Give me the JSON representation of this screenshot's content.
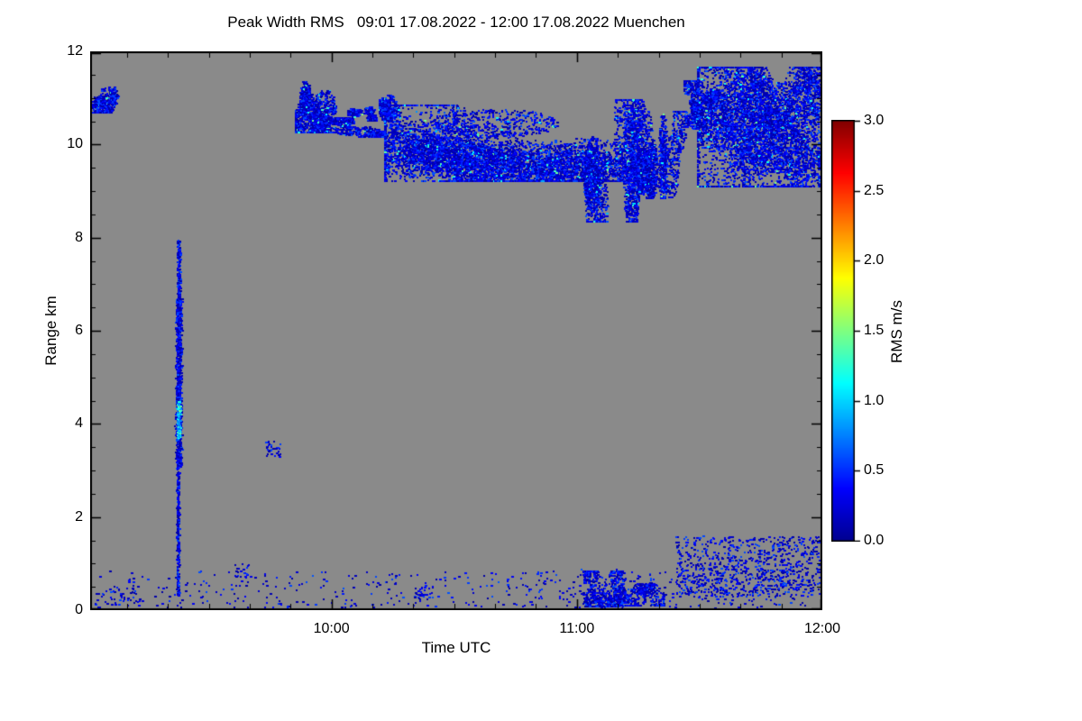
{
  "chart_data": {
    "type": "heatmap",
    "title": "Peak Width RMS   09:01 17.08.2022 - 12:00 17.08.2022 Muenchen",
    "xlabel": "Time UTC",
    "ylabel": "Range km",
    "x_range": {
      "start_hour": 9.0167,
      "end_hour": 12.0,
      "start_label": "09:01",
      "end_label": "12:00"
    },
    "y_range": [
      0,
      12
    ],
    "x_minor_step_hours": 0.1666667,
    "y_minor_step": 0.5,
    "xticks": [
      {
        "hour": 10,
        "label": "10:00"
      },
      {
        "hour": 11,
        "label": "11:00"
      },
      {
        "hour": 12,
        "label": "12:00"
      }
    ],
    "yticks": [
      {
        "v": 0,
        "label": "0"
      },
      {
        "v": 2,
        "label": "2"
      },
      {
        "v": 4,
        "label": "4"
      },
      {
        "v": 6,
        "label": "6"
      },
      {
        "v": 8,
        "label": "8"
      },
      {
        "v": 10,
        "label": "10"
      },
      {
        "v": 12,
        "label": "12"
      }
    ],
    "plot_background": "#8a8a8a",
    "frame_color": "#000000",
    "text_color": "#000000",
    "colorbar": {
      "label": "RMS m/s",
      "min": 0,
      "max": 3,
      "ticks": [
        {
          "v": 0.0,
          "label": "0.0"
        },
        {
          "v": 0.5,
          "label": "0.5"
        },
        {
          "v": 1.0,
          "label": "1.0"
        },
        {
          "v": 1.5,
          "label": "1.5"
        },
        {
          "v": 2.0,
          "label": "2.0"
        },
        {
          "v": 2.5,
          "label": "2.5"
        },
        {
          "v": 3.0,
          "label": "3.0"
        }
      ],
      "stops": [
        [
          0.0,
          "#00008f"
        ],
        [
          0.125,
          "#0000ff"
        ],
        [
          0.375,
          "#00ffff"
        ],
        [
          0.625,
          "#ffff00"
        ],
        [
          0.875,
          "#ff0000"
        ],
        [
          1.0,
          "#800000"
        ]
      ]
    },
    "features": [
      {
        "name": "left-edge-cloud-patch",
        "kind": "blob",
        "t": [
          9.025,
          9.12
        ],
        "z": [
          10.75,
          11.35
        ],
        "n": 480,
        "c": 5,
        "hot": true
      },
      {
        "name": "hook-cloud-main",
        "kind": "blob",
        "t": [
          9.86,
          10.01
        ],
        "z": [
          10.35,
          11.3
        ],
        "n": 1500,
        "c": 7,
        "hot": true
      },
      {
        "name": "hook-cloud-tail",
        "kind": "blob",
        "t": [
          9.97,
          10.19
        ],
        "z": [
          10.2,
          10.55
        ],
        "n": 600,
        "c": 6,
        "hot": true
      },
      {
        "name": "hook-cloud-chunk",
        "kind": "blob",
        "t": [
          10.07,
          10.17
        ],
        "z": [
          10.55,
          10.92
        ],
        "n": 280,
        "c": 3,
        "hot": true
      },
      {
        "name": "cloud-patch-1015",
        "kind": "blob",
        "t": [
          10.2,
          10.3
        ],
        "z": [
          10.55,
          11.15
        ],
        "n": 430,
        "c": 4,
        "hot": true
      },
      {
        "name": "main-cloud-band",
        "kind": "blob",
        "t": [
          10.27,
          11.2
        ],
        "z": [
          9.35,
          10.75
        ],
        "n": 7000,
        "c": 16,
        "hot": true
      },
      {
        "name": "virga-streaks-1",
        "kind": "blob",
        "t": [
          11.02,
          11.26
        ],
        "z": [
          8.55,
          10.8
        ],
        "n": 2700,
        "c": 10,
        "elong": "z",
        "hot": true
      },
      {
        "name": "virga-streaks-2",
        "kind": "blob",
        "t": [
          11.26,
          11.46
        ],
        "z": [
          9.0,
          10.6
        ],
        "n": 1500,
        "c": 8,
        "elong": "z",
        "hot": true
      },
      {
        "name": "pre-right-cloud-patch",
        "kind": "blob",
        "t": [
          11.44,
          11.56
        ],
        "z": [
          10.4,
          11.3
        ],
        "n": 750,
        "c": 5,
        "hot": true
      },
      {
        "name": "right-cloud-cluster",
        "kind": "blob",
        "t": [
          11.52,
          12.01
        ],
        "z": [
          9.3,
          11.5
        ],
        "n": 6500,
        "c": 14,
        "hot": true
      },
      {
        "name": "right-top-specks",
        "kind": "speckle",
        "t": [
          11.88,
          12.0
        ],
        "z": [
          11.15,
          11.55
        ],
        "n": 160
      },
      {
        "name": "plume-top",
        "kind": "vstreak",
        "tc": 9.375,
        "tw": 0.006,
        "z": [
          6.7,
          7.95
        ],
        "n": 170
      },
      {
        "name": "plume-core",
        "kind": "vstreak",
        "tc": 9.375,
        "tw": 0.011,
        "z": [
          3.1,
          6.7
        ],
        "n": 950
      },
      {
        "name": "plume-bright-core",
        "kind": "vstreak",
        "tc": 9.375,
        "tw": 0.007,
        "z": [
          3.7,
          4.5
        ],
        "n": 150,
        "v": [
          0.7,
          1.5
        ]
      },
      {
        "name": "plume-low",
        "kind": "vstreak",
        "tc": 9.372,
        "tw": 0.005,
        "z": [
          0.3,
          3.1
        ],
        "n": 260
      },
      {
        "name": "surface-sparse-left",
        "kind": "speckle",
        "t": [
          9.03,
          10.8
        ],
        "z": [
          0.03,
          0.85
        ],
        "n": 260
      },
      {
        "name": "surface-sparse-right",
        "kind": "speckle",
        "t": [
          10.8,
          12.0
        ],
        "z": [
          0.03,
          0.9
        ],
        "n": 300
      },
      {
        "name": "surface-cluster-a",
        "kind": "blob",
        "t": [
          10.98,
          11.18
        ],
        "z": [
          0.15,
          0.8
        ],
        "n": 650,
        "c": 6
      },
      {
        "name": "surface-cluster-b",
        "kind": "blob",
        "t": [
          11.17,
          11.34
        ],
        "z": [
          0.15,
          0.65
        ],
        "n": 380,
        "c": 5
      },
      {
        "name": "surface-scatter-right",
        "kind": "speckle",
        "t": [
          11.4,
          12.0
        ],
        "z": [
          0.3,
          1.6
        ],
        "n": 800
      },
      {
        "name": "isolated-dot-0945",
        "kind": "speckle",
        "t": [
          9.73,
          9.79
        ],
        "z": [
          3.3,
          3.65
        ],
        "n": 30
      },
      {
        "name": "isolated-dot-0938",
        "kind": "speckle",
        "t": [
          9.6,
          9.66
        ],
        "z": [
          0.7,
          1.0
        ],
        "n": 20
      },
      {
        "name": "isolated-dot-1022",
        "kind": "speckle",
        "t": [
          10.33,
          10.41
        ],
        "z": [
          0.25,
          0.55
        ],
        "n": 35
      },
      {
        "name": "left-low-specks",
        "kind": "speckle",
        "t": [
          9.05,
          9.22
        ],
        "z": [
          0.1,
          0.55
        ],
        "n": 45
      }
    ]
  }
}
